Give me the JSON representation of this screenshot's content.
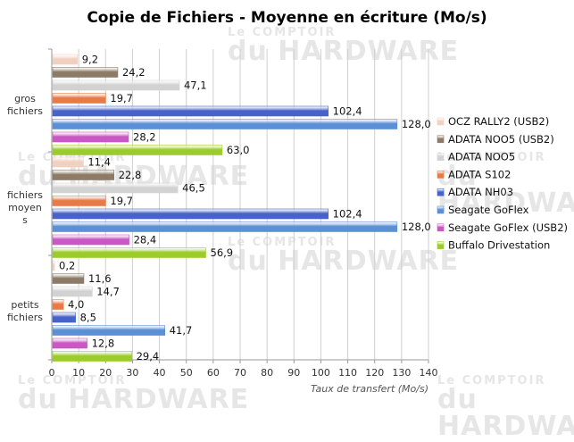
{
  "chart_data": {
    "type": "bar",
    "orientation": "horizontal",
    "title": "Copie de Fichiers - Moyenne en écriture (Mo/s)",
    "xlabel": "Taux de transfert  (Mo/s)",
    "xlim": [
      0,
      140
    ],
    "xticks": [
      "0",
      "10",
      "20",
      "30",
      "40",
      "50",
      "60",
      "70",
      "80",
      "90",
      "100",
      "110",
      "120",
      "130",
      "140"
    ],
    "groups": [
      {
        "name": "gros fichiers",
        "label_lines": [
          "gros",
          "fichiers"
        ]
      },
      {
        "name": "fichiers moyens",
        "label_lines": [
          "fichiers",
          "moyen",
          "s"
        ]
      },
      {
        "name": "petits fichiers",
        "label_lines": [
          "petits",
          "fichiers"
        ]
      }
    ],
    "series": [
      {
        "name": "OCZ RALLY2 (USB2)",
        "color": "#f2d0c0",
        "values": [
          9.2,
          11.4,
          0.2
        ],
        "labels": [
          "9,2",
          "11,4",
          "0,2"
        ]
      },
      {
        "name": "ADATA NOO5 (USB2)",
        "color": "#8c7b66",
        "values": [
          24.2,
          22.8,
          11.6
        ],
        "labels": [
          "24,2",
          "22,8",
          "11,6"
        ]
      },
      {
        "name": "ADATA NOO5",
        "color": "#d2d2d2",
        "values": [
          47.1,
          46.5,
          14.7
        ],
        "labels": [
          "47,1",
          "46,5",
          "14,7"
        ]
      },
      {
        "name": "ADATA S102",
        "color": "#ea7a45",
        "values": [
          19.7,
          19.7,
          4.0
        ],
        "labels": [
          "19,7",
          "19,7",
          "4,0"
        ]
      },
      {
        "name": "ADATA NH03",
        "color": "#4762c8",
        "values": [
          102.4,
          102.4,
          8.5
        ],
        "labels": [
          "102,4",
          "102,4",
          "8,5"
        ]
      },
      {
        "name": "Seagate GoFlex",
        "color": "#5b8fd6",
        "values": [
          128.0,
          128.0,
          41.7
        ],
        "labels": [
          "128,0",
          "128,0",
          "41,7"
        ]
      },
      {
        "name": "Seagate GoFlex (USB2)",
        "color": "#c957c4",
        "values": [
          28.2,
          28.4,
          12.8
        ],
        "labels": [
          "28,2",
          "28,4",
          "12,8"
        ]
      },
      {
        "name": "Buffalo Drivestation",
        "color": "#9ccc2c",
        "values": [
          63.0,
          56.9,
          29.4
        ],
        "labels": [
          "63,0",
          "56,9",
          "29,4"
        ]
      }
    ],
    "legend_position": "right",
    "grid": true
  },
  "watermark": {
    "line1": "Le COMPTOIR",
    "line2": "du HARDWARE"
  }
}
